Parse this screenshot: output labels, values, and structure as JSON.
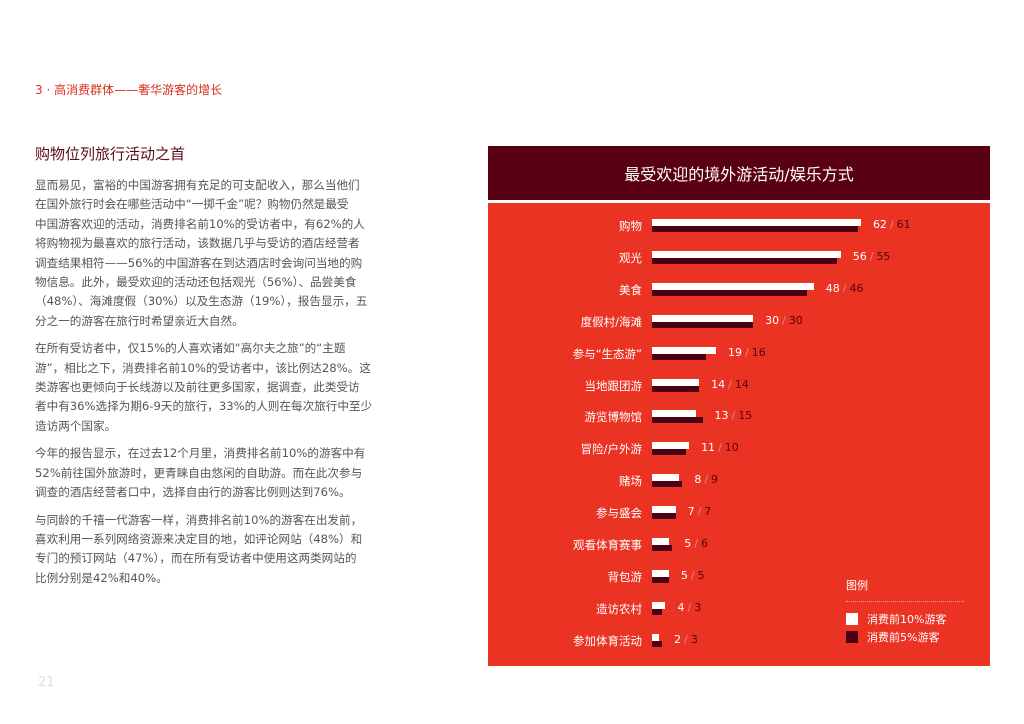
{
  "section_title": "3 · 高消费群体——奢华游客的增长",
  "heading": "购物位列旅行活动之首",
  "paragraphs": [
    [
      "显而易见，富裕的中国游客拥有充足的可支配收入，那么当他们",
      "在国外旅行时会在哪些活动中“一掷千金”呢？购物仍然是最受",
      "中国游客欢迎的活动，消费排名前10%的受访者中，有62%的人",
      "将购物视为最喜欢的旅行活动，该数据几乎与受访的酒店经营者",
      "调查结果相符——56%的中国游客在到达酒店时会询问当地的购",
      "物信息。此外，最受欢迎的活动还包括观光（56%）、品尝美食",
      "（48%）、海滩度假（30%）以及生态游（19%），报告显示，五",
      "分之一的游客在旅行时希望亲近大自然。"
    ],
    [
      "在所有受访者中，仅15%的人喜欢诸如“高尔夫之旅”的“主题",
      "游”，相比之下，消费排名前10%的受访者中，该比例达28%。这",
      "类游客也更倾向于长线游以及前往更多国家，据调查，此类受访",
      "者中有36%选择为期6-9天的旅行，33%的人则在每次旅行中至少",
      "造访两个国家。"
    ],
    [
      "今年的报告显示，在过去12个月里，消费排名前10%的游客中有",
      "52%前往国外旅游时，更青睐自由悠闲的自助游。而在此次参与",
      "调查的酒店经营者口中，选择自由行的游客比例则达到76%。"
    ],
    [
      "与同龄的千禧一代游客一样，消费排名前10%的游客在出发前，",
      "喜欢利用一系列网络资源来决定目的地，如评论网站（48%）和",
      "专门的预订网站（47%），而在所有受访者中使用这两类网站的",
      "比例分别是42%和40%。"
    ]
  ],
  "page_number": "21",
  "colors": {
    "accent": "#d9301f",
    "panel": "#ea3323",
    "header": "#5a0014",
    "series1": "#ffffff",
    "series2": "#4a0012"
  },
  "chart_data": {
    "type": "bar",
    "orientation": "horizontal",
    "title": "最受欢迎的境外游活动/娱乐方式",
    "categories": [
      "购物",
      "观光",
      "美食",
      "度假村/海滩",
      "参与“生态游”",
      "当地跟团游",
      "游览博物馆",
      "冒险/户外游",
      "赌场",
      "参与盛会",
      "观看体育赛事",
      "背包游",
      "造访农村",
      "参加体育活动"
    ],
    "series": [
      {
        "name": "消费前10%游客",
        "values": [
          62,
          56,
          48,
          30,
          19,
          14,
          13,
          11,
          8,
          7,
          5,
          5,
          4,
          2
        ]
      },
      {
        "name": "消费前5%游客",
        "values": [
          61,
          55,
          46,
          30,
          16,
          14,
          15,
          10,
          9,
          7,
          6,
          5,
          3,
          3
        ]
      }
    ],
    "separator": "/",
    "legend_title": "图例",
    "legend_position": "bottom-right",
    "grid": false
  }
}
